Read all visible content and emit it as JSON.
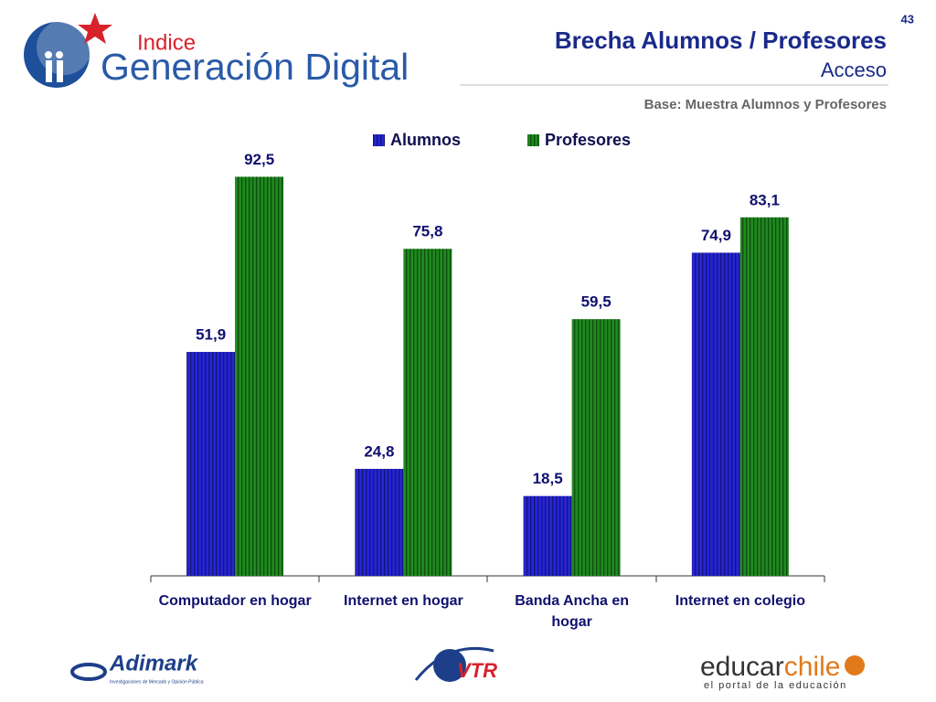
{
  "page_number": "43",
  "logos": {
    "indice": "Indice",
    "generacion": "Generación Digital",
    "adimark": "Adimark",
    "adimark_tagline": "Investigaciones de Mercado y Opinión Pública",
    "vtr": "VTR",
    "educar": "educar",
    "chile": "chile",
    "educar_tagline": "el portal de la educación"
  },
  "chart_data": {
    "type": "bar",
    "title": "Brecha Alumnos / Profesores",
    "subtitle": "Acceso",
    "note": "Base: Muestra Alumnos y Profesores",
    "categories": [
      "Computador en hogar",
      "Internet en hogar",
      "Banda Ancha en hogar",
      "Internet en colegio"
    ],
    "series": [
      {
        "name": "Alumnos",
        "color": "#2525d8",
        "values": [
          51.9,
          24.8,
          18.5,
          74.9
        ],
        "value_labels": [
          "51,9",
          "24,8",
          "18,5",
          "74,9"
        ]
      },
      {
        "name": "Profesores",
        "color": "#1e8a1e",
        "values": [
          92.5,
          75.8,
          59.5,
          83.1
        ],
        "value_labels": [
          "92,5",
          "75,8",
          "59,5",
          "83,1"
        ]
      }
    ],
    "ylim": [
      0,
      100
    ]
  }
}
